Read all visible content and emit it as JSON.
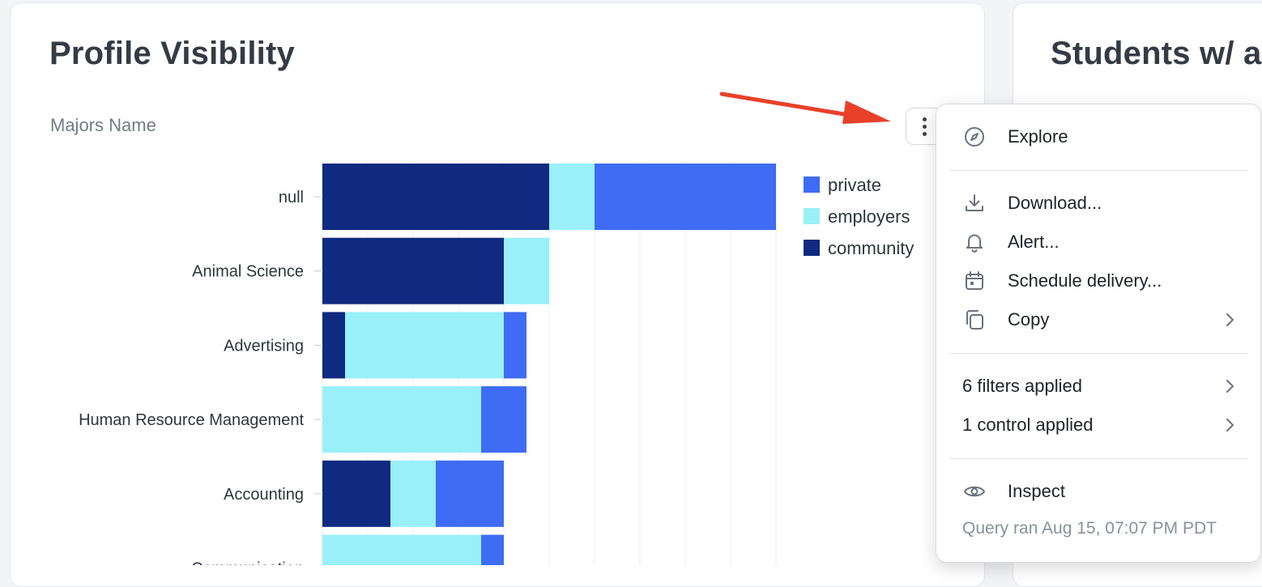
{
  "cards": {
    "main_title": "Profile Visibility",
    "right_title": "Students w/ a"
  },
  "chart_data": {
    "type": "bar",
    "orientation": "horizontal",
    "stacked": true,
    "y_axis_title": "Majors Name",
    "categories": [
      "null",
      "Animal Science",
      "Advertising",
      "Human Resource Management",
      "Accounting",
      "Communication"
    ],
    "series": [
      {
        "name": "community",
        "color": "#0f2a80",
        "values": [
          10,
          8,
          1,
          0,
          3,
          0
        ]
      },
      {
        "name": "employers",
        "color": "#99f0f9",
        "values": [
          2,
          2,
          7,
          7,
          2,
          7
        ]
      },
      {
        "name": "private",
        "color": "#3e6cf4",
        "values": [
          8,
          0,
          1,
          2,
          3,
          1
        ]
      }
    ],
    "legend_order": [
      "private",
      "employers",
      "community"
    ],
    "legend_position": "right",
    "xlim": [
      0,
      20
    ],
    "grid": true
  },
  "menu": {
    "items": [
      {
        "label": "Explore",
        "icon": "compass-icon"
      },
      {
        "label": "Download...",
        "icon": "download-icon"
      },
      {
        "label": "Alert...",
        "icon": "bell-icon"
      },
      {
        "label": "Schedule delivery...",
        "icon": "calendar-icon"
      },
      {
        "label": "Copy",
        "icon": "copy-icon"
      },
      {
        "label": "6 filters applied"
      },
      {
        "label": "1 control applied"
      },
      {
        "label": "Inspect",
        "icon": "eye-icon"
      }
    ],
    "footer": "Query ran Aug 15, 07:07 PM PDT"
  },
  "annotation": {
    "arrow_color": "#e8412a"
  }
}
